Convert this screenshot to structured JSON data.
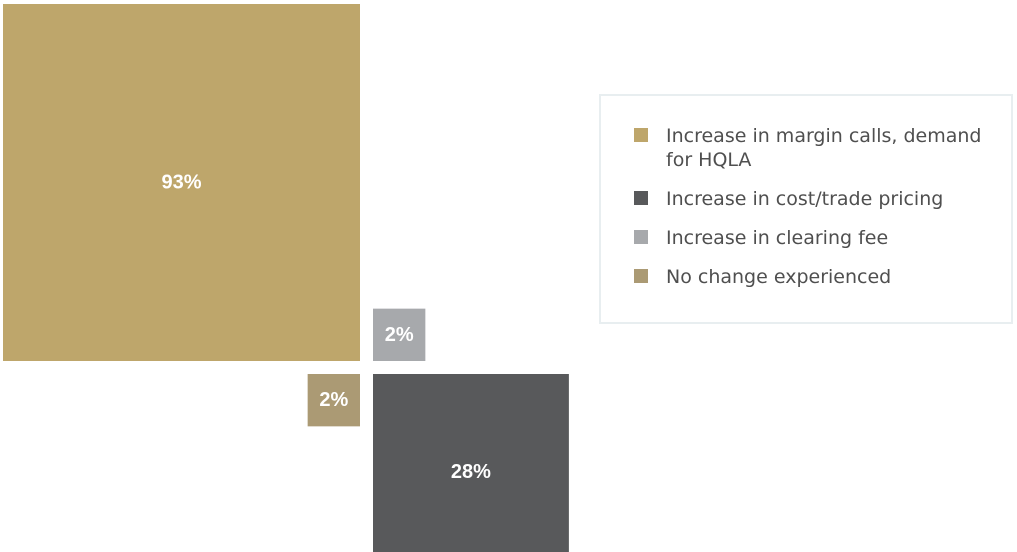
{
  "chart_data": {
    "type": "square-area",
    "categories": [
      "Increase in margin calls, demand for HQLA",
      "Increase in cost/trade pricing",
      "Increase in clearing fee",
      "No change experienced"
    ],
    "values": [
      93,
      28,
      2,
      2
    ],
    "data_labels": [
      "93%",
      "28%",
      "2%",
      "2%"
    ],
    "unit": "%",
    "colors": [
      "#bea66b",
      "#58595b",
      "#a7a9ac",
      "#ab9a74"
    ],
    "legend": {
      "placement": "right",
      "items": [
        {
          "label": "Increase in margin calls, demand for HQLA",
          "color": "#bea66b"
        },
        {
          "label": "Increase in cost/trade pricing",
          "color": "#58595b"
        },
        {
          "label": "Increase in clearing fee",
          "color": "#a7a9ac"
        },
        {
          "label": "No change experienced",
          "color": "#ab9a74"
        }
      ]
    }
  }
}
